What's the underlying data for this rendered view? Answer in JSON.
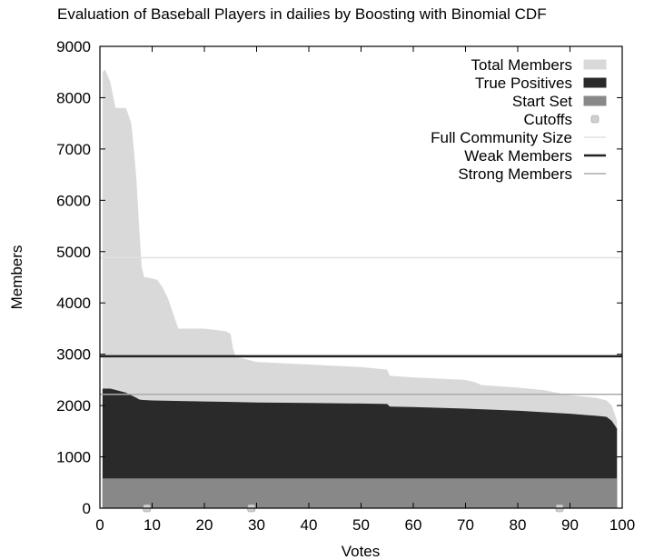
{
  "chart_data": {
    "type": "area",
    "title": "Evaluation of Baseball Players in dailies by Boosting with Binomial CDF",
    "xlabel": "Votes",
    "ylabel": "Members",
    "xlim": [
      0,
      100
    ],
    "ylim": [
      0,
      9000
    ],
    "xticks": [
      "0",
      "10",
      "20",
      "30",
      "40",
      "50",
      "60",
      "70",
      "80",
      "90",
      "100"
    ],
    "yticks": [
      "0",
      "1000",
      "2000",
      "3000",
      "4000",
      "5000",
      "6000",
      "7000",
      "8000",
      "9000"
    ],
    "legend_position": "top-right",
    "grid": false,
    "series": [
      {
        "name": "Total Members",
        "style": "area",
        "color": "#d9d9d9",
        "x": [
          0.5,
          1,
          2,
          3,
          4,
          5,
          6,
          6.5,
          7,
          7.5,
          8,
          8.5,
          9,
          11,
          12,
          13,
          14,
          15,
          16,
          20,
          24,
          25,
          25.5,
          26,
          30,
          40,
          50,
          55,
          55.5,
          60,
          70,
          72,
          73,
          80,
          85,
          90,
          95,
          97,
          98,
          99
        ],
        "y": [
          8500,
          8550,
          8300,
          7800,
          7800,
          7800,
          7500,
          7000,
          6400,
          5500,
          4700,
          4500,
          4500,
          4450,
          4300,
          4100,
          3800,
          3500,
          3500,
          3500,
          3450,
          3400,
          3100,
          2950,
          2850,
          2800,
          2750,
          2700,
          2580,
          2550,
          2500,
          2450,
          2400,
          2350,
          2300,
          2200,
          2150,
          2100,
          2000,
          1700
        ]
      },
      {
        "name": "True Positives",
        "style": "area",
        "color": "#2a2a2a",
        "x": [
          0.5,
          2,
          5,
          7,
          7.5,
          8,
          10,
          20,
          30,
          40,
          50,
          55,
          55.5,
          60,
          70,
          80,
          90,
          95,
          97,
          98,
          99
        ],
        "y": [
          2330,
          2330,
          2250,
          2150,
          2120,
          2110,
          2100,
          2080,
          2060,
          2050,
          2040,
          2030,
          1980,
          1970,
          1940,
          1900,
          1840,
          1800,
          1780,
          1700,
          1550
        ]
      },
      {
        "name": "Start Set",
        "style": "area",
        "color": "#888888",
        "x": [
          0.5,
          99
        ],
        "y": [
          580,
          580
        ]
      },
      {
        "name": "Cutoffs",
        "style": "points",
        "color": "#d0d0d0",
        "x": [
          9,
          29,
          88
        ],
        "y": [
          0,
          0,
          0
        ]
      },
      {
        "name": "Full Community Size",
        "style": "hline",
        "color": "#e0e0e0",
        "y": 4880
      },
      {
        "name": "Weak Members",
        "style": "hline",
        "color": "#222222",
        "y": 2960
      },
      {
        "name": "Strong Members",
        "style": "hline",
        "color": "#aaaaaa",
        "y": 2220
      }
    ]
  }
}
